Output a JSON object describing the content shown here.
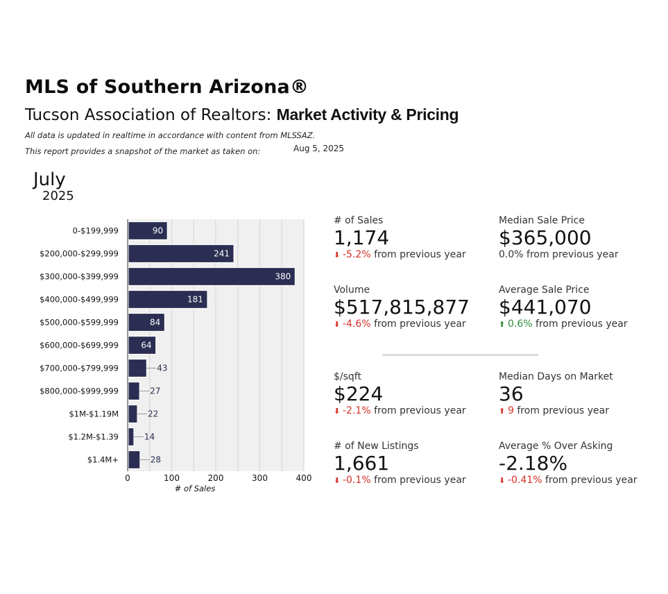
{
  "header": {
    "title": "MLS of Southern Arizona®",
    "subtitle_prefix": "Tucson Association of Realtors: ",
    "subtitle_strong": "Market Activity & Pricing",
    "note_line1": "All data is updated in realtime in accordance with content from MLSSAZ.",
    "note_line2": "This report provides a snapshot of the market as taken on:",
    "snapshot_date": "Aug 5, 2025"
  },
  "period": {
    "month": "July",
    "year": "2025"
  },
  "chart_data": {
    "type": "bar",
    "orientation": "horizontal",
    "categories": [
      "0-$199,999",
      "$200,000-$299,999",
      "$300,000-$399,999",
      "$400,000-$499,999",
      "$500,000-$599,999",
      "$600,000-$699,999",
      "$700,000-$799,999",
      "$800,000-$999,999",
      "$1M-$1.19M",
      "$1.2M-$1.39",
      "$1.4M+"
    ],
    "values": [
      90,
      241,
      380,
      181,
      84,
      64,
      43,
      27,
      22,
      14,
      28
    ],
    "xlabel": "# of Sales",
    "xlim": [
      0,
      400
    ],
    "xticks": [
      0,
      100,
      200,
      300,
      400
    ],
    "grid": true,
    "bar_color": "#2b2d52",
    "background": "#f0f0f0"
  },
  "metrics": [
    {
      "label": "# of Sales",
      "value": "1,174",
      "change": "-5.2%",
      "direction": "down",
      "suffix": "from previous year"
    },
    {
      "label": "Median Sale Price",
      "value": "$365,000",
      "change": "0.0%",
      "direction": "none",
      "suffix": "from previous year"
    },
    {
      "label": "Volume",
      "value": "$517,815,877",
      "change": "-4.6%",
      "direction": "down",
      "suffix": "from previous year"
    },
    {
      "label": "Average Sale Price",
      "value": "$441,070",
      "change": "0.6%",
      "direction": "up-green",
      "suffix": "from previous year"
    },
    {
      "label": "$/sqft",
      "value": "$224",
      "change": "-2.1%",
      "direction": "down",
      "suffix": "from previous year"
    },
    {
      "label": "Median Days on Market",
      "value": "36",
      "change": "9",
      "direction": "up-red",
      "suffix": "from previous year"
    },
    {
      "label": "# of New Listings",
      "value": "1,661",
      "change": "-0.1%",
      "direction": "down",
      "suffix": "from previous year"
    },
    {
      "label": "Average % Over Asking",
      "value": "-2.18%",
      "change": "-0.41%",
      "direction": "down",
      "suffix": "from previous year"
    }
  ],
  "colors": {
    "down": "#d73027",
    "up_red": "#d73027",
    "up_green": "#2e8b3a"
  },
  "icons": {
    "down": "arrow-down-icon",
    "up": "arrow-up-icon"
  }
}
